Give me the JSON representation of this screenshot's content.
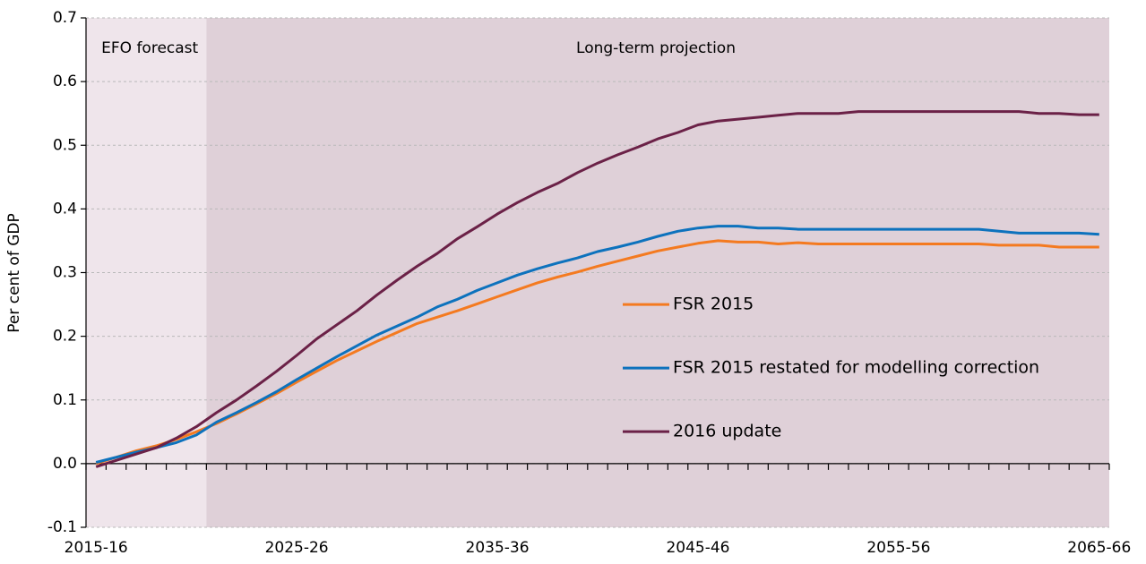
{
  "chart_data": {
    "type": "line",
    "y_label": "Per cent of GDP",
    "annotations": [
      "EFO forecast",
      "Long-term projection"
    ],
    "categories": [
      "2015-16",
      null,
      null,
      null,
      null,
      null,
      null,
      null,
      null,
      null,
      "2025-26",
      null,
      null,
      null,
      null,
      null,
      null,
      null,
      null,
      null,
      "2035-36",
      null,
      null,
      null,
      null,
      null,
      null,
      null,
      null,
      null,
      "2045-46",
      null,
      null,
      null,
      null,
      null,
      null,
      null,
      null,
      null,
      "2055-56",
      null,
      null,
      null,
      null,
      null,
      null,
      null,
      null,
      null,
      "2065-66"
    ],
    "series": [
      {
        "name": "FSR 2015",
        "color": "#f47a20",
        "values": [
          0.0,
          0.01,
          0.02,
          0.028,
          0.038,
          0.05,
          0.063,
          0.078,
          0.094,
          0.11,
          0.128,
          0.145,
          0.162,
          0.177,
          0.192,
          0.206,
          0.22,
          0.23,
          0.24,
          0.251,
          0.262,
          0.273,
          0.284,
          0.293,
          0.301,
          0.31,
          0.318,
          0.326,
          0.334,
          0.34,
          0.346,
          0.35,
          0.348,
          0.348,
          0.345,
          0.347,
          0.345,
          0.345,
          0.345,
          0.345,
          0.345,
          0.345,
          0.345,
          0.345,
          0.345,
          0.343,
          0.343,
          0.343,
          0.34,
          0.34,
          0.34
        ]
      },
      {
        "name": "FSR 2015 restated for modelling correction",
        "color": "#0d72bd",
        "values": [
          0.002,
          0.01,
          0.018,
          0.025,
          0.033,
          0.045,
          0.065,
          0.08,
          0.096,
          0.113,
          0.132,
          0.15,
          0.168,
          0.185,
          0.202,
          0.216,
          0.23,
          0.246,
          0.258,
          0.272,
          0.284,
          0.296,
          0.306,
          0.315,
          0.323,
          0.333,
          0.34,
          0.348,
          0.357,
          0.365,
          0.37,
          0.373,
          0.373,
          0.37,
          0.37,
          0.368,
          0.368,
          0.368,
          0.368,
          0.368,
          0.368,
          0.368,
          0.368,
          0.368,
          0.368,
          0.365,
          0.362,
          0.362,
          0.362,
          0.362,
          0.36
        ]
      },
      {
        "name": "2016 update",
        "color": "#6b2147",
        "values": [
          -0.005,
          0.005,
          0.015,
          0.025,
          0.04,
          0.058,
          0.08,
          0.1,
          0.122,
          0.145,
          0.17,
          0.196,
          0.218,
          0.24,
          0.265,
          0.288,
          0.31,
          0.33,
          0.353,
          0.372,
          0.392,
          0.41,
          0.426,
          0.44,
          0.457,
          0.472,
          0.485,
          0.497,
          0.51,
          0.52,
          0.532,
          0.538,
          0.541,
          0.544,
          0.547,
          0.55,
          0.55,
          0.55,
          0.553,
          0.553,
          0.553,
          0.553,
          0.553,
          0.553,
          0.553,
          0.553,
          0.553,
          0.55,
          0.55,
          0.548,
          0.548
        ]
      }
    ],
    "ylim": [
      -0.1,
      0.7
    ],
    "yticks": [
      -0.1,
      {
        "value": 0,
        "label": "0.0"
      },
      0.1,
      0.2,
      0.3,
      0.4,
      0.5,
      0.6,
      0.7
    ],
    "grid": true,
    "legend": "center"
  }
}
